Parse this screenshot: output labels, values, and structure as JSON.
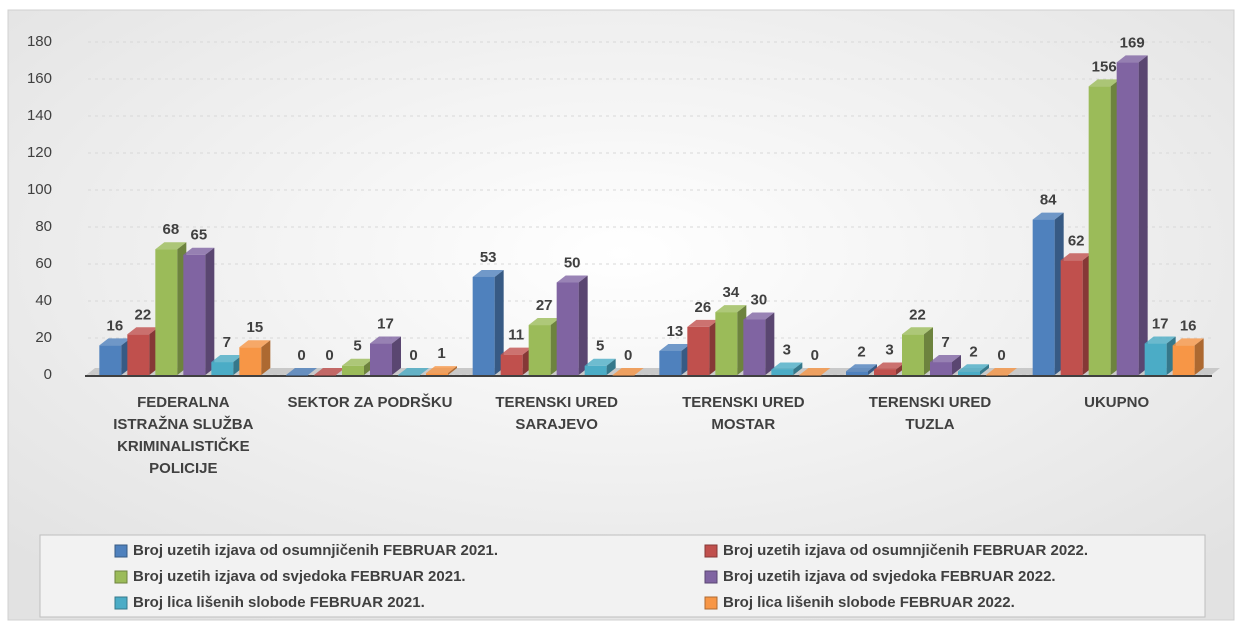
{
  "chart_data": {
    "type": "bar3d",
    "categories": [
      "FEDERALNA ISTRAŽNA SLUŽBA KRIMINALISTIČKE POLICIJE",
      "SEKTOR ZA PODRŠKU",
      "TERENSKI URED SARAJEVO",
      "TERENSKI URED MOSTAR",
      "TERENSKI URED TUZLA",
      "UKUPNO"
    ],
    "series": [
      {
        "name": "Broj uzetih izjava od osumnjičenih FEBRUAR 2021.",
        "color": "#4f81bd",
        "values": [
          16,
          0,
          53,
          13,
          2,
          84
        ]
      },
      {
        "name": "Broj uzetih izjava od osumnjičenih FEBRUAR  2022.",
        "color": "#c0504d",
        "values": [
          22,
          0,
          11,
          26,
          3,
          62
        ]
      },
      {
        "name": "Broj uzetih izjava od svjedoka FEBRUAR 2021.",
        "color": "#9bbb59",
        "values": [
          68,
          5,
          27,
          34,
          22,
          156
        ]
      },
      {
        "name": "Broj uzetih izjava od svjedoka FEBRUAR  2022.",
        "color": "#8064a2",
        "values": [
          65,
          17,
          50,
          30,
          7,
          169
        ]
      },
      {
        "name": "Broj lica lišenih slobode FEBRUAR 2021.",
        "color": "#4bacc6",
        "values": [
          7,
          0,
          5,
          3,
          2,
          17
        ]
      },
      {
        "name": "Broj lica lišenih slobode FEBRUAR  2022.",
        "color": "#f79646",
        "values": [
          15,
          1,
          0,
          0,
          0,
          16
        ]
      }
    ],
    "ylim": [
      0,
      180
    ],
    "yticks": [
      0,
      20,
      40,
      60,
      80,
      100,
      120,
      140,
      160,
      180
    ],
    "grid": true,
    "legend": "bottom"
  }
}
